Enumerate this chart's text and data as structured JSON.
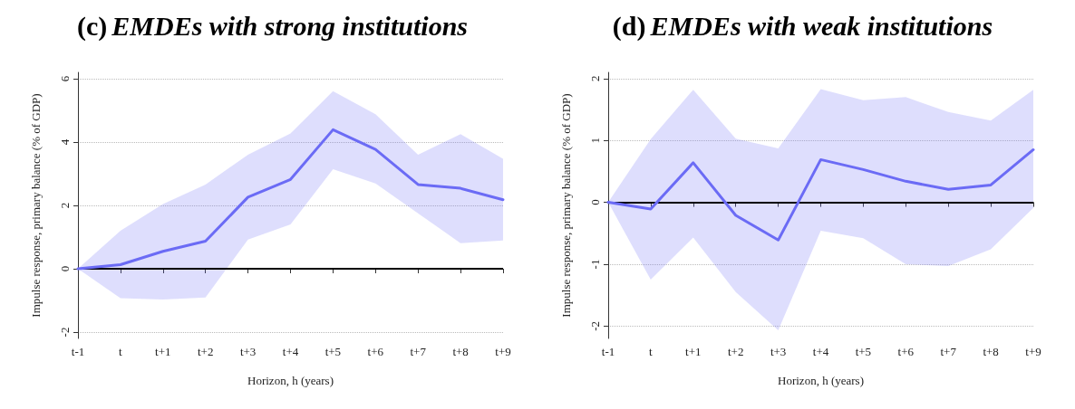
{
  "chart_data": [
    {
      "type": "line",
      "title": "(c) EMDEs with strong institutions",
      "xlabel": "Horizon, h (years)",
      "ylabel": "Impulse response, primary balance (% of GDP)",
      "categories": [
        "t-1",
        "t",
        "t+1",
        "t+2",
        "t+3",
        "t+4",
        "t+5",
        "t+6",
        "t+7",
        "t+8",
        "t+9"
      ],
      "series": [
        {
          "color": "#6b6bf5",
          "values": [
            0,
            0.13,
            0.55,
            0.87,
            2.26,
            2.82,
            4.39,
            3.77,
            2.66,
            2.54,
            2.18
          ],
          "upper": [
            0,
            1.2,
            2.04,
            2.66,
            3.6,
            4.27,
            5.61,
            4.88,
            3.6,
            4.25,
            3.47
          ],
          "lower": [
            0,
            -0.93,
            -0.97,
            -0.91,
            0.92,
            1.4,
            3.14,
            2.69,
            1.75,
            0.81,
            0.89
          ]
        }
      ],
      "ylim": [
        -2.2,
        6.2
      ],
      "yticks": [
        -2,
        0,
        2,
        4,
        6
      ],
      "grid": "y",
      "marker": "none",
      "line_style": "solid",
      "ref_lines": [
        {
          "axis": "y",
          "value": 0,
          "color": "#000000"
        }
      ]
    },
    {
      "type": "line",
      "title": "(d) EMDEs with weak institutions",
      "xlabel": "Horizon, h (years)",
      "ylabel": "Impulse response, primary balance (% of GDP)",
      "categories": [
        "t-1",
        "t",
        "t+1",
        "t+2",
        "t+3",
        "t+4",
        "t+5",
        "t+6",
        "t+7",
        "t+8",
        "t+9"
      ],
      "series": [
        {
          "color": "#6b6bf5",
          "values": [
            0,
            -0.11,
            0.64,
            -0.21,
            -0.61,
            0.69,
            0.53,
            0.34,
            0.21,
            0.28,
            0.85
          ],
          "upper": [
            0,
            1.02,
            1.82,
            1.03,
            0.87,
            1.83,
            1.65,
            1.7,
            1.46,
            1.32,
            1.82
          ],
          "lower": [
            0,
            -1.25,
            -0.57,
            -1.45,
            -2.07,
            -0.46,
            -0.58,
            -1.0,
            -1.03,
            -0.76,
            -0.09
          ]
        }
      ],
      "ylim": [
        -2.2,
        2.1
      ],
      "yticks": [
        -2,
        -1,
        0,
        1,
        2
      ],
      "grid": "y",
      "marker": "none",
      "line_style": "solid",
      "ref_lines": [
        {
          "axis": "y",
          "value": 0,
          "color": "#000000"
        }
      ]
    }
  ]
}
